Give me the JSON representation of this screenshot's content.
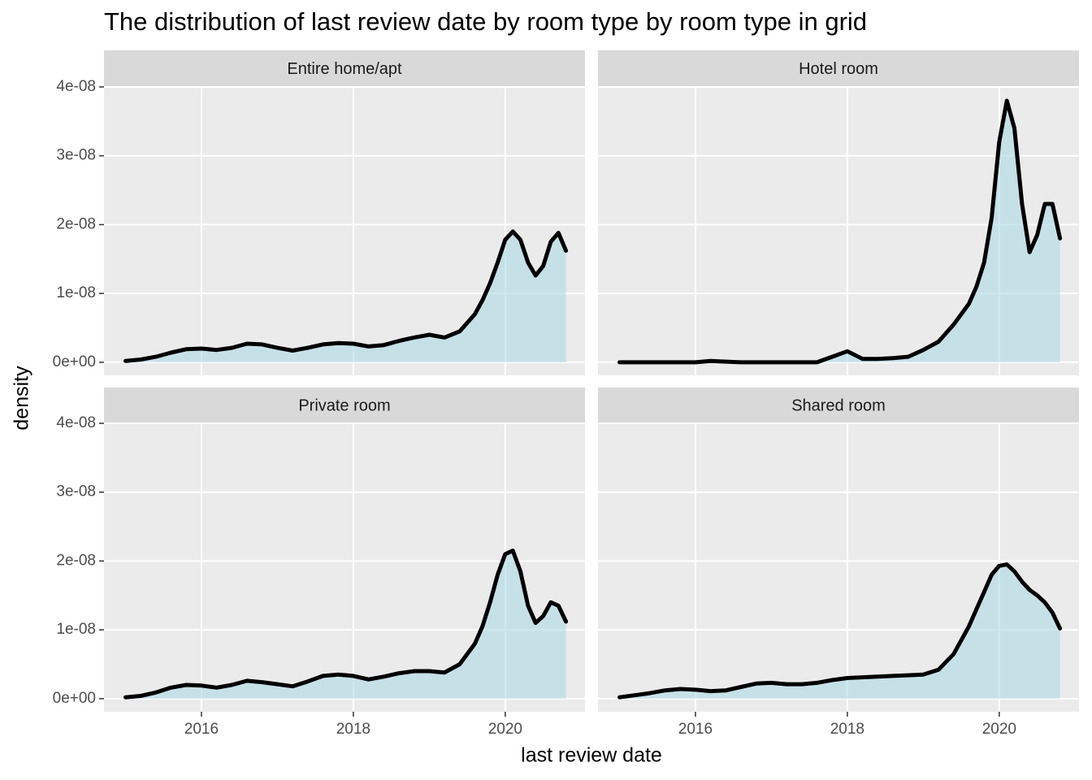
{
  "chart_data": {
    "type": "area",
    "title": "The distribution of last review date by room type by room type in grid",
    "x_label": "last review date",
    "y_label": "density",
    "x": [
      2015.0,
      2015.2,
      2015.4,
      2015.6,
      2015.8,
      2016.0,
      2016.2,
      2016.4,
      2016.6,
      2016.8,
      2017.0,
      2017.2,
      2017.4,
      2017.6,
      2017.8,
      2018.0,
      2018.2,
      2018.4,
      2018.6,
      2018.8,
      2019.0,
      2019.2,
      2019.4,
      2019.6,
      2019.7,
      2019.8,
      2019.9,
      2020.0,
      2020.1,
      2020.2,
      2020.3,
      2020.4,
      2020.5,
      2020.6,
      2020.7,
      2020.8
    ],
    "xlim": [
      2014.717,
      2021.05
    ],
    "xticks": [
      2016,
      2018,
      2020
    ],
    "ylim": [
      -1.9e-09,
      4e-08
    ],
    "yticks": [
      {
        "value": 0,
        "label": "0e+00"
      },
      {
        "value": 1e-08,
        "label": "1e-08"
      },
      {
        "value": 2e-08,
        "label": "2e-08"
      },
      {
        "value": 3e-08,
        "label": "3e-08"
      },
      {
        "value": 4e-08,
        "label": "4e-08"
      }
    ],
    "grid": true,
    "line_color": "#000000",
    "series": [
      {
        "name": "Entire home/apt",
        "color": "#add8e6",
        "values": [
          2e-10,
          4e-10,
          8e-10,
          1.4e-09,
          1.9e-09,
          2e-09,
          1.8e-09,
          2.1e-09,
          2.7e-09,
          2.6e-09,
          2.1e-09,
          1.7e-09,
          2.1e-09,
          2.6e-09,
          2.8e-09,
          2.7e-09,
          2.3e-09,
          2.5e-09,
          3.1e-09,
          3.6e-09,
          4e-09,
          3.6e-09,
          4.5e-09,
          7e-09,
          9e-09,
          1.15e-08,
          1.45e-08,
          1.78e-08,
          1.9e-08,
          1.78e-08,
          1.45e-08,
          1.26e-08,
          1.4e-08,
          1.75e-08,
          1.88e-08,
          1.62e-08
        ]
      },
      {
        "name": "Hotel room",
        "color": "#add8e6",
        "values": [
          0,
          0,
          0,
          0,
          0,
          0,
          2e-10,
          1e-10,
          0,
          0,
          0,
          0,
          0,
          0,
          8e-10,
          1.6e-09,
          5e-10,
          5e-10,
          6e-10,
          8e-10,
          1.8e-09,
          3e-09,
          5.5e-09,
          8.5e-09,
          1.1e-08,
          1.45e-08,
          2.1e-08,
          3.2e-08,
          3.8e-08,
          3.4e-08,
          2.3e-08,
          1.6e-08,
          1.85e-08,
          2.3e-08,
          2.3e-08,
          1.8e-08
        ]
      },
      {
        "name": "Private room",
        "color": "#add8e6",
        "values": [
          2e-10,
          4e-10,
          9e-10,
          1.6e-09,
          2e-09,
          1.9e-09,
          1.6e-09,
          2e-09,
          2.6e-09,
          2.4e-09,
          2.1e-09,
          1.8e-09,
          2.5e-09,
          3.3e-09,
          3.5e-09,
          3.3e-09,
          2.8e-09,
          3.2e-09,
          3.7e-09,
          4e-09,
          4e-09,
          3.8e-09,
          5e-09,
          8e-09,
          1.05e-08,
          1.4e-08,
          1.8e-08,
          2.1e-08,
          2.15e-08,
          1.85e-08,
          1.35e-08,
          1.1e-08,
          1.2e-08,
          1.4e-08,
          1.35e-08,
          1.12e-08
        ]
      },
      {
        "name": "Shared room",
        "color": "#add8e6",
        "values": [
          2e-10,
          5e-10,
          8e-10,
          1.2e-09,
          1.4e-09,
          1.3e-09,
          1.1e-09,
          1.2e-09,
          1.7e-09,
          2.2e-09,
          2.3e-09,
          2.1e-09,
          2.1e-09,
          2.3e-09,
          2.7e-09,
          3e-09,
          3.1e-09,
          3.2e-09,
          3.3e-09,
          3.4e-09,
          3.5e-09,
          4.2e-09,
          6.5e-09,
          1.05e-08,
          1.3e-08,
          1.55e-08,
          1.8e-08,
          1.93e-08,
          1.95e-08,
          1.85e-08,
          1.7e-08,
          1.58e-08,
          1.5e-08,
          1.4e-08,
          1.25e-08,
          1.02e-08
        ]
      }
    ]
  }
}
